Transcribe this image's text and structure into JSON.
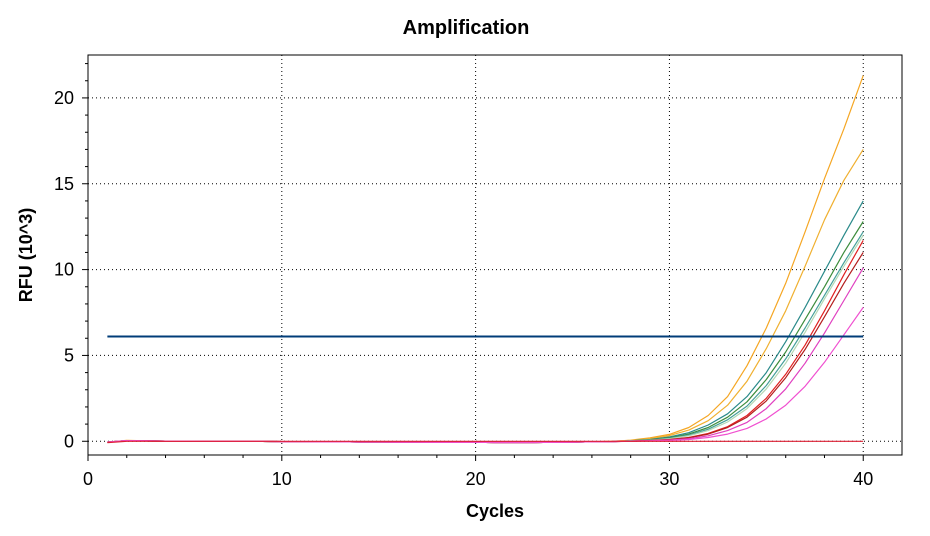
{
  "chart_data": {
    "type": "line",
    "title": "Amplification",
    "xlabel": "Cycles",
    "ylabel": "RFU (10^3)",
    "xlim": [
      0,
      42
    ],
    "ylim": [
      -0.8,
      22.5
    ],
    "xticks": [
      0,
      10,
      20,
      30,
      40
    ],
    "yticks": [
      0,
      5,
      10,
      15,
      20
    ],
    "grid": true,
    "threshold": {
      "value": 6.1,
      "x": [
        1,
        40
      ],
      "color": "#003c78"
    },
    "x": [
      1,
      2,
      3,
      4,
      5,
      6,
      7,
      8,
      9,
      10,
      11,
      12,
      13,
      14,
      15,
      16,
      17,
      18,
      19,
      20,
      21,
      22,
      23,
      24,
      25,
      26,
      27,
      28,
      29,
      30,
      31,
      32,
      33,
      34,
      35,
      36,
      37,
      38,
      39,
      40
    ],
    "series": [
      {
        "name": "orange-1",
        "color": "#f5a623",
        "values": [
          -0.05,
          0.05,
          0.02,
          0.01,
          0.01,
          0.0,
          0.0,
          -0.01,
          -0.01,
          -0.02,
          -0.02,
          -0.03,
          -0.03,
          -0.04,
          -0.04,
          -0.05,
          -0.05,
          -0.06,
          -0.06,
          -0.06,
          -0.07,
          -0.07,
          -0.07,
          -0.06,
          -0.05,
          -0.03,
          -0.01,
          0.06,
          0.2,
          0.4,
          0.8,
          1.5,
          2.6,
          4.4,
          6.6,
          9.2,
          12.2,
          15.3,
          18.2,
          21.3
        ]
      },
      {
        "name": "orange-2",
        "color": "#f0b030",
        "values": [
          -0.05,
          0.04,
          0.02,
          0.01,
          0.01,
          0.0,
          0.0,
          -0.01,
          -0.01,
          -0.02,
          -0.02,
          -0.03,
          -0.03,
          -0.04,
          -0.04,
          -0.05,
          -0.05,
          -0.06,
          -0.06,
          -0.06,
          -0.07,
          -0.07,
          -0.07,
          -0.06,
          -0.05,
          -0.03,
          -0.01,
          0.05,
          0.15,
          0.33,
          0.65,
          1.2,
          2.1,
          3.5,
          5.4,
          7.6,
          10.2,
          12.9,
          15.2,
          17.0
        ]
      },
      {
        "name": "teal-1",
        "color": "#2a8a8a",
        "values": [
          -0.05,
          0.04,
          0.02,
          0.01,
          0.01,
          0.0,
          0.0,
          -0.01,
          -0.01,
          -0.02,
          -0.02,
          -0.03,
          -0.03,
          -0.04,
          -0.04,
          -0.05,
          -0.05,
          -0.06,
          -0.06,
          -0.06,
          -0.07,
          -0.07,
          -0.07,
          -0.06,
          -0.05,
          -0.03,
          -0.02,
          0.03,
          0.1,
          0.25,
          0.5,
          0.95,
          1.6,
          2.6,
          4.0,
          5.8,
          7.8,
          9.9,
          12.0,
          14.0
        ]
      },
      {
        "name": "green-1",
        "color": "#3c8c3c",
        "values": [
          -0.05,
          0.04,
          0.02,
          0.01,
          0.01,
          0.0,
          0.0,
          -0.01,
          -0.01,
          -0.02,
          -0.02,
          -0.03,
          -0.03,
          -0.04,
          -0.04,
          -0.05,
          -0.05,
          -0.06,
          -0.06,
          -0.06,
          -0.07,
          -0.07,
          -0.07,
          -0.06,
          -0.05,
          -0.03,
          -0.02,
          0.02,
          0.08,
          0.2,
          0.42,
          0.8,
          1.4,
          2.3,
          3.6,
          5.2,
          7.1,
          9.0,
          11.0,
          12.8
        ]
      },
      {
        "name": "teal-2",
        "color": "#46a09a",
        "values": [
          -0.05,
          0.04,
          0.02,
          0.01,
          0.01,
          0.0,
          0.0,
          -0.01,
          -0.01,
          -0.02,
          -0.02,
          -0.03,
          -0.03,
          -0.04,
          -0.04,
          -0.05,
          -0.05,
          -0.06,
          -0.06,
          -0.06,
          -0.07,
          -0.07,
          -0.07,
          -0.06,
          -0.05,
          -0.03,
          -0.02,
          0.02,
          0.07,
          0.17,
          0.36,
          0.7,
          1.25,
          2.05,
          3.25,
          4.8,
          6.6,
          8.5,
          10.4,
          12.2
        ]
      },
      {
        "name": "pale-green",
        "color": "#b4d8b4",
        "values": [
          -0.05,
          0.04,
          0.02,
          0.01,
          0.01,
          0.0,
          0.0,
          -0.01,
          -0.01,
          -0.02,
          -0.02,
          -0.03,
          -0.03,
          -0.04,
          -0.04,
          -0.05,
          -0.05,
          -0.06,
          -0.06,
          -0.06,
          -0.07,
          -0.07,
          -0.07,
          -0.06,
          -0.05,
          -0.03,
          -0.02,
          0.02,
          0.06,
          0.15,
          0.32,
          0.62,
          1.12,
          1.9,
          3.05,
          4.55,
          6.35,
          8.3,
          10.2,
          12.0
        ]
      },
      {
        "name": "red-1",
        "color": "#e02020",
        "values": [
          -0.05,
          0.04,
          0.02,
          0.01,
          0.01,
          0.0,
          0.0,
          -0.01,
          -0.01,
          -0.02,
          -0.02,
          -0.03,
          -0.03,
          -0.04,
          -0.04,
          -0.05,
          -0.05,
          -0.06,
          -0.06,
          -0.06,
          -0.07,
          -0.07,
          -0.07,
          -0.06,
          -0.05,
          -0.03,
          -0.02,
          0.01,
          0.04,
          0.1,
          0.22,
          0.45,
          0.85,
          1.5,
          2.5,
          3.9,
          5.6,
          7.6,
          9.7,
          11.7
        ]
      },
      {
        "name": "red-2",
        "color": "#b41e1e",
        "values": [
          -0.05,
          0.04,
          0.02,
          0.01,
          0.01,
          0.0,
          0.0,
          -0.01,
          -0.01,
          -0.02,
          -0.02,
          -0.03,
          -0.03,
          -0.04,
          -0.04,
          -0.05,
          -0.05,
          -0.06,
          -0.06,
          -0.06,
          -0.07,
          -0.07,
          -0.07,
          -0.06,
          -0.05,
          -0.03,
          -0.02,
          0.01,
          0.04,
          0.09,
          0.2,
          0.42,
          0.8,
          1.4,
          2.35,
          3.7,
          5.35,
          7.25,
          9.2,
          11.0
        ]
      },
      {
        "name": "magenta-1",
        "color": "#e040c0",
        "values": [
          -0.05,
          0.04,
          0.02,
          0.01,
          0.01,
          0.0,
          0.0,
          -0.01,
          -0.01,
          -0.02,
          -0.02,
          -0.03,
          -0.03,
          -0.04,
          -0.04,
          -0.05,
          -0.05,
          -0.06,
          -0.06,
          -0.06,
          -0.07,
          -0.07,
          -0.07,
          -0.06,
          -0.05,
          -0.03,
          -0.02,
          0.01,
          0.03,
          0.07,
          0.15,
          0.32,
          0.62,
          1.1,
          1.9,
          3.05,
          4.55,
          6.3,
          8.2,
          10.1
        ]
      },
      {
        "name": "magenta-2",
        "color": "#f050d0",
        "values": [
          -0.05,
          0.04,
          0.02,
          0.01,
          0.01,
          0.0,
          0.0,
          -0.01,
          -0.01,
          -0.02,
          -0.02,
          -0.03,
          -0.03,
          -0.04,
          -0.04,
          -0.05,
          -0.05,
          -0.06,
          -0.06,
          -0.06,
          -0.07,
          -0.07,
          -0.07,
          -0.06,
          -0.05,
          -0.03,
          -0.02,
          0.0,
          0.02,
          0.05,
          0.1,
          0.22,
          0.42,
          0.75,
          1.3,
          2.1,
          3.2,
          4.6,
          6.2,
          7.8
        ]
      },
      {
        "name": "baseline-red",
        "color": "#dc1e32",
        "values": [
          -0.08,
          0.0,
          0.0,
          0.0,
          0.0,
          0.0,
          0.0,
          0.0,
          0.0,
          0.0,
          0.0,
          0.0,
          0.0,
          0.0,
          0.0,
          0.0,
          0.0,
          0.0,
          0.0,
          0.0,
          0.0,
          0.0,
          0.0,
          0.0,
          0.0,
          0.0,
          0.0,
          0.0,
          0.0,
          0.0,
          0.0,
          0.0,
          0.0,
          0.0,
          0.0,
          0.0,
          0.0,
          0.0,
          0.0,
          0.0
        ]
      }
    ]
  }
}
